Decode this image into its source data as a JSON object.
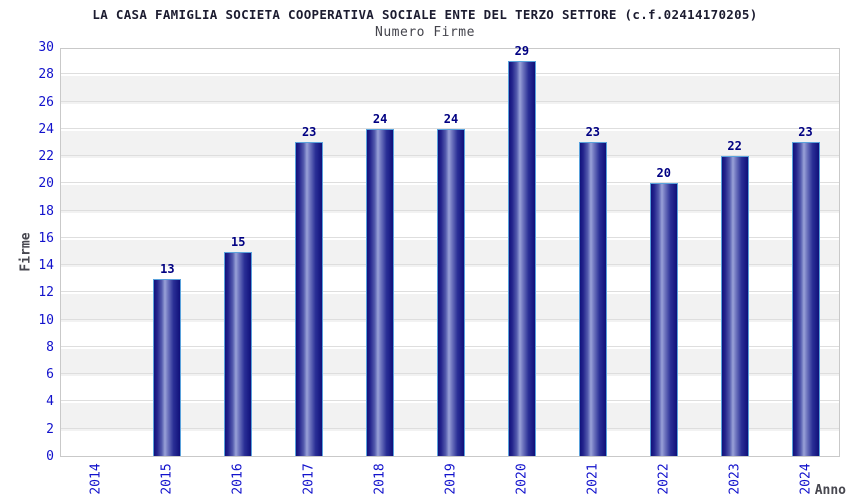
{
  "chart_data": {
    "type": "bar",
    "title": "LA CASA FAMIGLIA SOCIETA COOPERATIVA SOCIALE ENTE DEL TERZO SETTORE (c.f.02414170205)",
    "subtitle": "Numero Firme",
    "xlabel": "Anno",
    "ylabel": "Firme",
    "categories": [
      "2014",
      "2015",
      "2016",
      "2017",
      "2018",
      "2019",
      "2020",
      "2021",
      "2022",
      "2023",
      "2024"
    ],
    "values": [
      0,
      13,
      15,
      23,
      24,
      24,
      29,
      23,
      20,
      22,
      23
    ],
    "ylim": [
      0,
      30
    ],
    "ytick_step": 2,
    "grid": "horizontal-bands-alternating",
    "legend": "none",
    "bar_labels_shown": true,
    "colors": {
      "bar_dark": "#12127c",
      "bar_light": "#99a1d8",
      "bar_border": "#5aa2dc",
      "tick_text": "#1212cc",
      "value_text": "#000082",
      "title_text": "#1c1c30",
      "axis_label_text": "#47474f",
      "band_alt": "#f2f2f2",
      "gridline": "#dedede",
      "plot_border": "#c9c9c9",
      "background": "#ffffff"
    }
  }
}
